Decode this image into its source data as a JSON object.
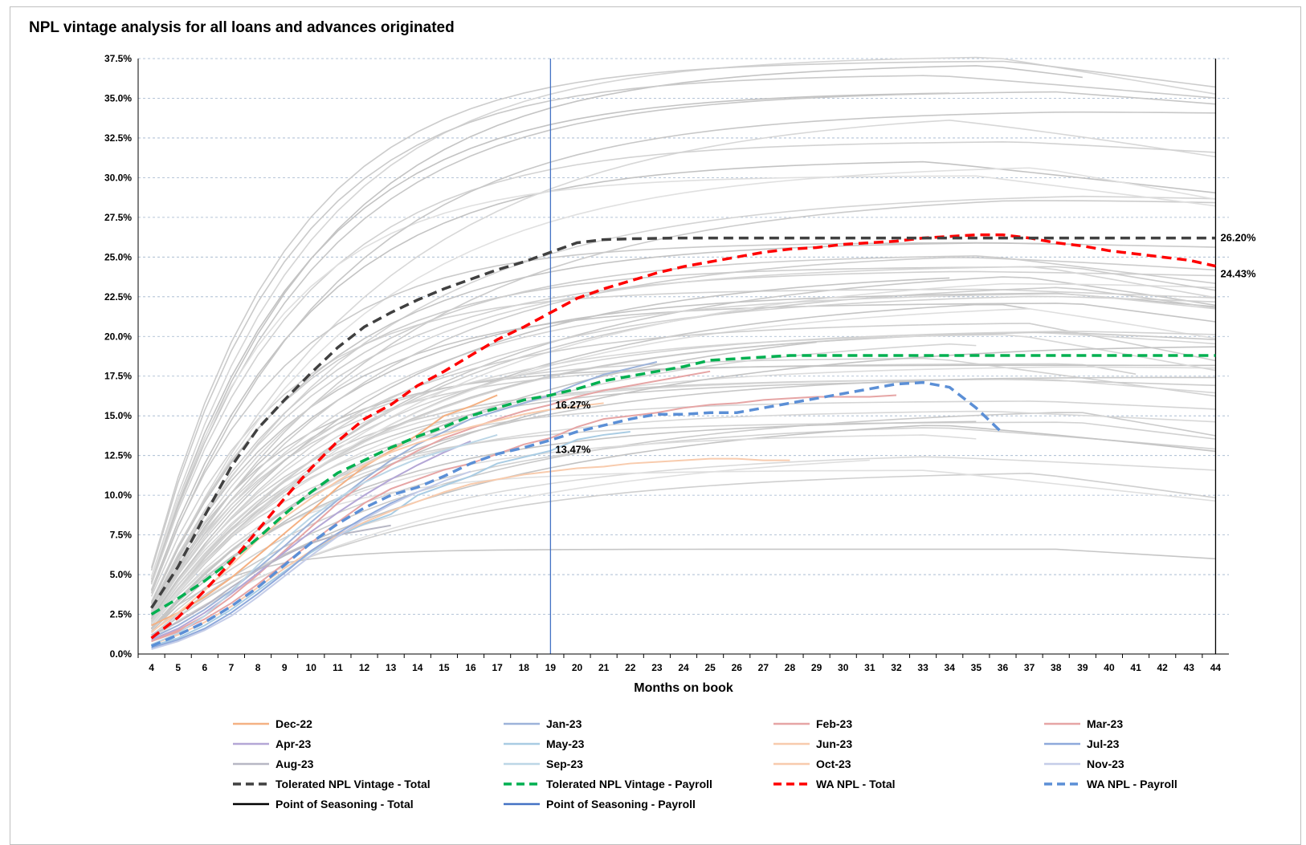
{
  "chart_data": {
    "type": "line",
    "title": "NPL vintage analysis for all loans and advances originated",
    "xlabel": "Months on book",
    "ylabel": "",
    "x": [
      4,
      5,
      6,
      7,
      8,
      9,
      10,
      11,
      12,
      13,
      14,
      15,
      16,
      17,
      18,
      19,
      20,
      21,
      22,
      23,
      24,
      25,
      26,
      27,
      28,
      29,
      30,
      31,
      32,
      33,
      34,
      35,
      36,
      37,
      38,
      39,
      40,
      41,
      42,
      43,
      44
    ],
    "xlim": [
      4,
      44
    ],
    "ylim": [
      0,
      37.5
    ],
    "y_ticks": [
      "0.0%",
      "2.5%",
      "5.0%",
      "7.5%",
      "10.0%",
      "12.5%",
      "15.0%",
      "17.5%",
      "20.0%",
      "22.5%",
      "25.0%",
      "27.5%",
      "30.0%",
      "32.5%",
      "35.0%",
      "37.5%"
    ],
    "grid": "horizontal dashed",
    "legend_position": "bottom",
    "series": [
      {
        "name": "Dec-22",
        "color": "#f4b183",
        "x": [
          4,
          5,
          6,
          7,
          8,
          9,
          10,
          11,
          12,
          13,
          14,
          15,
          16,
          17
        ],
        "values": [
          1.8,
          2.6,
          3.6,
          4.8,
          6.2,
          7.6,
          9.0,
          10.5,
          11.8,
          12.8,
          13.8,
          15.0,
          15.6,
          16.3
        ]
      },
      {
        "name": "Jan-23",
        "color": "#9db3d9",
        "x": [
          4,
          5,
          6,
          7,
          8,
          9,
          10,
          11,
          12,
          13,
          14,
          15,
          16,
          17,
          18,
          19,
          20,
          21,
          22,
          23
        ],
        "values": [
          1.0,
          1.8,
          2.8,
          4.0,
          5.4,
          6.8,
          8.3,
          9.7,
          11.0,
          12.2,
          13.2,
          14.0,
          14.8,
          15.3,
          15.8,
          16.3,
          17.0,
          17.6,
          18.0,
          18.4
        ]
      },
      {
        "name": "Feb-23",
        "color": "#e6a5a5",
        "x": [
          4,
          5,
          6,
          7,
          8,
          9,
          10,
          11,
          12,
          13,
          14,
          15,
          16,
          17,
          18,
          19,
          20,
          21,
          22,
          23,
          24,
          25
        ],
        "values": [
          0.8,
          1.5,
          2.4,
          3.6,
          5.0,
          6.5,
          8.0,
          9.5,
          10.8,
          11.9,
          12.8,
          13.6,
          14.2,
          14.8,
          15.3,
          15.7,
          16.2,
          16.6,
          16.9,
          17.2,
          17.5,
          17.8
        ]
      },
      {
        "name": "Mar-23",
        "color": "#e6a5a5",
        "x": [
          4,
          5,
          6,
          7,
          8,
          9,
          10,
          11,
          12,
          13,
          14,
          15,
          16,
          17,
          18,
          19,
          20,
          21,
          22,
          23,
          24,
          25,
          26,
          27,
          28,
          29,
          30,
          31,
          32
        ],
        "values": [
          0.8,
          1.4,
          2.2,
          3.2,
          4.4,
          5.7,
          7.0,
          8.3,
          9.5,
          10.4,
          11.0,
          11.6,
          12.0,
          12.6,
          13.2,
          13.6,
          14.3,
          14.8,
          15.0,
          15.2,
          15.5,
          15.7,
          15.8,
          16.0,
          16.1,
          16.2,
          16.2,
          16.2,
          16.3
        ]
      },
      {
        "name": "Apr-23",
        "color": "#b4a7d6",
        "x": [
          4,
          5,
          6,
          7,
          8,
          9,
          10,
          11,
          12,
          13,
          14,
          15,
          16
        ],
        "values": [
          0.9,
          1.6,
          2.6,
          3.8,
          5.1,
          6.4,
          7.7,
          8.9,
          10.0,
          11.0,
          11.9,
          12.7,
          13.4
        ]
      },
      {
        "name": "May-23",
        "color": "#a9cce3",
        "x": [
          4,
          5,
          6,
          7,
          8,
          9,
          10,
          11,
          12,
          13,
          14,
          15,
          16,
          17,
          18,
          19,
          20,
          21,
          22
        ],
        "values": [
          0.5,
          1.0,
          1.8,
          2.8,
          4.0,
          5.2,
          6.4,
          7.4,
          8.2,
          8.8,
          10.0,
          10.6,
          11.2,
          12.0,
          12.4,
          12.8,
          13.5,
          13.8,
          14.0
        ]
      },
      {
        "name": "Jun-23",
        "color": "#f8cbad",
        "x": [
          4,
          5,
          6,
          7,
          8,
          9,
          10,
          11,
          12,
          13,
          14,
          15,
          16,
          17,
          18,
          19,
          20,
          21,
          22,
          23,
          24,
          25,
          26,
          27,
          28
        ],
        "values": [
          0.6,
          1.2,
          2.0,
          3.0,
          4.2,
          5.4,
          6.5,
          7.5,
          8.3,
          9.0,
          9.6,
          10.2,
          10.7,
          11.0,
          11.3,
          11.5,
          11.7,
          11.8,
          12.0,
          12.1,
          12.2,
          12.3,
          12.3,
          12.2,
          12.2
        ]
      },
      {
        "name": "Jul-23",
        "color": "#8ea9db",
        "x": [
          4,
          5,
          6,
          7,
          8,
          9,
          10,
          11,
          12,
          13,
          14
        ],
        "values": [
          0.4,
          0.9,
          1.6,
          2.6,
          3.8,
          5.1,
          6.5,
          7.6,
          8.6,
          9.5,
          10.2
        ]
      },
      {
        "name": "Aug-23",
        "color": "#b7b7c4",
        "x": [
          4,
          5,
          6,
          7,
          8,
          9,
          10,
          11,
          12,
          13
        ],
        "values": [
          1.2,
          2.0,
          3.0,
          4.2,
          5.3,
          6.2,
          7.0,
          7.5,
          7.8,
          8.1
        ]
      },
      {
        "name": "Sep-23",
        "color": "#bcd6e6",
        "x": [
          4,
          5,
          6,
          7,
          8,
          9,
          10,
          11,
          12,
          13,
          14,
          15,
          16,
          17
        ],
        "values": [
          0.6,
          1.3,
          2.4,
          3.9,
          5.6,
          7.2,
          8.6,
          9.8,
          10.8,
          11.6,
          12.3,
          12.8,
          13.3,
          13.8
        ]
      },
      {
        "name": "Oct-23",
        "color": "#f8cbad",
        "x": [
          4,
          5,
          6,
          7,
          8,
          9,
          10,
          11,
          12,
          13,
          14,
          15,
          16,
          17,
          18,
          19,
          20,
          21
        ],
        "values": [
          1.4,
          2.6,
          4.0,
          5.6,
          7.2,
          8.6,
          9.8,
          10.9,
          11.9,
          12.7,
          13.3,
          13.8,
          14.3,
          14.7,
          15.1,
          15.4,
          15.6,
          15.8
        ]
      },
      {
        "name": "Nov-23",
        "color": "#c5cde8",
        "x": [
          4,
          5,
          6,
          7,
          8,
          9,
          10,
          11,
          12,
          13,
          14,
          15,
          16
        ],
        "values": [
          0.3,
          0.8,
          1.5,
          2.4,
          3.6,
          4.9,
          6.2,
          7.4,
          8.5,
          9.4,
          10.2,
          10.9,
          11.5
        ]
      },
      {
        "name": "Tolerated NPL Vintage - Total",
        "color": "#404040",
        "dashed": true,
        "x": [
          4,
          5,
          6,
          7,
          8,
          9,
          10,
          11,
          12,
          13,
          14,
          15,
          16,
          17,
          18,
          19,
          20,
          21,
          22,
          23,
          24,
          25,
          26,
          27,
          28,
          29,
          30,
          31,
          32,
          33,
          34,
          35,
          36,
          37,
          38,
          39,
          40,
          41,
          42,
          43,
          44
        ],
        "values": [
          2.9,
          5.5,
          8.7,
          11.8,
          14.2,
          16.0,
          17.7,
          19.3,
          20.6,
          21.5,
          22.3,
          23.0,
          23.6,
          24.2,
          24.7,
          25.3,
          25.9,
          26.1,
          26.15,
          26.18,
          26.2,
          26.2,
          26.2,
          26.2,
          26.2,
          26.2,
          26.2,
          26.2,
          26.2,
          26.2,
          26.2,
          26.2,
          26.2,
          26.2,
          26.2,
          26.2,
          26.2,
          26.2,
          26.2,
          26.2,
          26.2
        ]
      },
      {
        "name": "Tolerated NPL Vintage - Payroll",
        "color": "#00b050",
        "dashed": true,
        "x": [
          4,
          5,
          6,
          7,
          8,
          9,
          10,
          11,
          12,
          13,
          14,
          15,
          16,
          17,
          18,
          19,
          20,
          21,
          22,
          23,
          24,
          25,
          26,
          27,
          28,
          29,
          30,
          31,
          32,
          33,
          34,
          35,
          36,
          37,
          38,
          39,
          40,
          41,
          42,
          43,
          44
        ],
        "values": [
          2.5,
          3.5,
          4.6,
          5.9,
          7.3,
          8.8,
          10.2,
          11.4,
          12.2,
          13.0,
          13.7,
          14.3,
          15.0,
          15.5,
          16.0,
          16.3,
          16.7,
          17.2,
          17.5,
          17.8,
          18.1,
          18.5,
          18.6,
          18.7,
          18.8,
          18.8,
          18.8,
          18.8,
          18.8,
          18.8,
          18.8,
          18.8,
          18.8,
          18.8,
          18.8,
          18.8,
          18.8,
          18.8,
          18.8,
          18.8,
          18.8
        ]
      },
      {
        "name": "WA NPL - Total",
        "color": "#ff0000",
        "dashed": true,
        "x": [
          4,
          5,
          6,
          7,
          8,
          9,
          10,
          11,
          12,
          13,
          14,
          15,
          16,
          17,
          18,
          19,
          20,
          21,
          22,
          23,
          24,
          25,
          26,
          27,
          28,
          29,
          30,
          31,
          32,
          33,
          34,
          35,
          36,
          37,
          38,
          39,
          40,
          41,
          42,
          43,
          44
        ],
        "values": [
          1.0,
          2.3,
          4.0,
          5.8,
          7.8,
          9.8,
          11.7,
          13.4,
          14.8,
          15.7,
          16.9,
          17.8,
          18.8,
          19.8,
          20.6,
          21.5,
          22.4,
          23.0,
          23.5,
          24.0,
          24.4,
          24.7,
          25.0,
          25.3,
          25.5,
          25.6,
          25.8,
          25.9,
          26.0,
          26.2,
          26.3,
          26.4,
          26.4,
          26.2,
          25.9,
          25.7,
          25.4,
          25.2,
          25.0,
          24.8,
          24.43
        ]
      },
      {
        "name": "WA NPL - Payroll",
        "color": "#5b8fd6",
        "dashed": true,
        "x": [
          4,
          5,
          6,
          7,
          8,
          9,
          10,
          11,
          12,
          13,
          14,
          15,
          16,
          17,
          18,
          19,
          20,
          21,
          22,
          23,
          24,
          25,
          26,
          27,
          28,
          29,
          30,
          31,
          32,
          33,
          34,
          35,
          36
        ],
        "values": [
          0.5,
          1.2,
          2.0,
          3.0,
          4.2,
          5.6,
          7.0,
          8.2,
          9.2,
          10.0,
          10.5,
          11.2,
          12.0,
          12.6,
          13.0,
          13.47,
          14.0,
          14.4,
          14.8,
          15.1,
          15.1,
          15.2,
          15.2,
          15.5,
          15.8,
          16.1,
          16.4,
          16.7,
          17.0,
          17.1,
          16.8,
          15.5,
          13.9
        ]
      },
      {
        "name": "Point of Seasoning - Total",
        "color": "#000000",
        "x": [
          44,
          44
        ],
        "values": [
          0,
          37.5
        ]
      },
      {
        "name": "Point of Seasoning - Payroll",
        "color": "#4472c4",
        "x": [
          19,
          19
        ],
        "values": [
          0,
          37.5
        ]
      }
    ],
    "annotations": [
      {
        "text": "26.20%",
        "x": 44,
        "y": 26.2
      },
      {
        "text": "24.43%",
        "x": 44,
        "y": 24.43
      },
      {
        "text": "16.27%",
        "x": 19,
        "y": 16.27
      },
      {
        "text": "13.47%",
        "x": 19,
        "y": 13.47
      }
    ]
  }
}
